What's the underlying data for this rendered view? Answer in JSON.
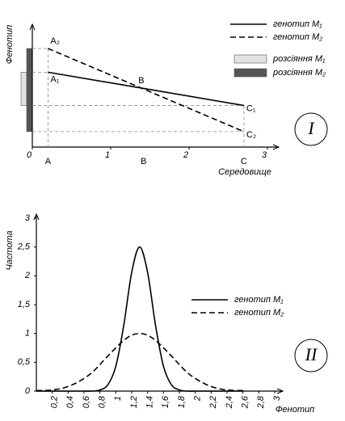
{
  "chart_data": [
    {
      "type": "line",
      "xlabel": "Середовище",
      "ylabel": "Фенотип",
      "panel_label": "I",
      "x": [
        0.2,
        2.7
      ],
      "series": [
        {
          "name": "генотип M₁",
          "color": "#000000",
          "dashed": false,
          "values": [
            0.63,
            0.35
          ],
          "point_labels": [
            "A₁",
            "C₁"
          ]
        },
        {
          "name": "генотип M₂",
          "color": "#000000",
          "dashed": true,
          "values": [
            0.83,
            0.13
          ],
          "point_labels": [
            "A₂",
            "C₂"
          ]
        }
      ],
      "crossing_label": "B",
      "ranges": [
        {
          "name": "розсіяння M₁",
          "color": "#e2e2e2",
          "low": 0.35,
          "high": 0.63
        },
        {
          "name": "розсіяння M₂",
          "color": "#555555",
          "low": 0.13,
          "high": 0.83
        }
      ],
      "x_markers": [
        {
          "label": "A",
          "value": 0.2
        },
        {
          "label": "B",
          "value": 1.42
        },
        {
          "label": "C",
          "value": 2.7
        }
      ],
      "xlim": [
        0,
        3
      ],
      "xticks": [
        0,
        1,
        2,
        3
      ],
      "ylim": [
        0,
        1
      ]
    },
    {
      "type": "line",
      "xlabel": "Фенотип",
      "ylabel": "Частота",
      "panel_label": "II",
      "x": [
        0,
        0.1,
        0.2,
        0.3,
        0.4,
        0.5,
        0.6,
        0.7,
        0.8,
        0.9,
        1,
        1.1,
        1.2,
        1.3,
        1.4,
        1.5,
        1.6,
        1.7,
        1.8,
        1.9,
        2,
        2.1,
        2.2,
        2.3,
        2.4,
        2.5,
        2.6
      ],
      "series": [
        {
          "name": "генотип M₁",
          "color": "#000000",
          "dashed": false,
          "values": [
            0,
            0,
            0,
            0,
            0,
            0,
            0,
            0,
            0.02,
            0.11,
            0.43,
            1.14,
            2.06,
            2.5,
            2.06,
            1.14,
            0.43,
            0.11,
            0.02,
            0,
            0,
            0,
            0,
            0,
            0,
            0,
            0
          ]
        },
        {
          "name": "генотип M₂",
          "color": "#000000",
          "dashed": true,
          "values": [
            0.01,
            0.01,
            0.02,
            0.04,
            0.08,
            0.14,
            0.22,
            0.32,
            0.46,
            0.61,
            0.75,
            0.88,
            0.97,
            1,
            0.97,
            0.88,
            0.75,
            0.61,
            0.46,
            0.32,
            0.22,
            0.14,
            0.08,
            0.04,
            0.02,
            0.01,
            0.01
          ]
        }
      ],
      "xlim": [
        0,
        3
      ],
      "xticks": [
        {
          "value": 0.2,
          "label": "0,2"
        },
        {
          "value": 0.4,
          "label": "0,4"
        },
        {
          "value": 0.6,
          "label": "0,6"
        },
        {
          "value": 0.8,
          "label": "0,8"
        },
        1,
        {
          "value": 1.2,
          "label": "1,2"
        },
        {
          "value": 1.4,
          "label": "1,4"
        },
        {
          "value": 1.6,
          "label": "1,6"
        },
        {
          "value": 1.8,
          "label": "1,8"
        },
        2,
        {
          "value": 2.2,
          "label": "2,2"
        },
        {
          "value": 2.4,
          "label": "2,4"
        },
        {
          "value": 2.6,
          "label": "2,6"
        },
        {
          "value": 2.8,
          "label": "2,8"
        },
        3
      ],
      "ylim": [
        0,
        3
      ],
      "yticks": [
        0,
        {
          "value": 0.5,
          "label": "0,5"
        },
        1,
        {
          "value": 1.5,
          "label": "1,5"
        },
        2,
        {
          "value": 2.5,
          "label": "2,5"
        },
        3
      ]
    }
  ]
}
